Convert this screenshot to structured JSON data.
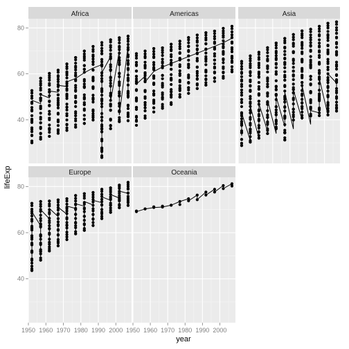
{
  "chart_data": {
    "type": "line",
    "subtype": "faceted line + scatter (ggplot2 facet_wrap)",
    "title": "",
    "xlabel": "year",
    "ylabel": "lifeExp",
    "xlim": [
      1950,
      2009
    ],
    "ylim": [
      21,
      84
    ],
    "x_ticks": [
      1950,
      1960,
      1970,
      1980,
      1990,
      2000
    ],
    "x_tick_labels": [
      "1950",
      "1960",
      "1970",
      "1980",
      "1990",
      "2000"
    ],
    "y_ticks": [
      40,
      60,
      80
    ],
    "y_tick_labels": [
      "40",
      "60",
      "80"
    ],
    "years": [
      1952,
      1957,
      1962,
      1967,
      1972,
      1977,
      1982,
      1987,
      1992,
      1997,
      2002,
      2007
    ],
    "grid": true,
    "colors": {
      "panel_background": "#ebebeb",
      "strip_background": "#d9d9d9",
      "grid_major": "#ffffff",
      "grid_minor": "#f5f5f5",
      "points": "#000000",
      "lines": "#000000"
    },
    "facets": [
      {
        "name": "Africa",
        "points_min": [
          30.0,
          31.6,
          32.8,
          34.1,
          35.4,
          36.8,
          38.4,
          39.9,
          23.6,
          36.1,
          39.2,
          39.6
        ],
        "points_max": [
          52.7,
          58.1,
          60.2,
          61.6,
          64.3,
          67.1,
          69.9,
          71.9,
          73.6,
          74.8,
          75.7,
          76.4
        ],
        "line_path": [
          {
            "year": 1952,
            "lifeExp": 48.5
          },
          {
            "year": 1957,
            "lifeExp": 47.0
          },
          {
            "year": 1957,
            "lifeExp": 51.0
          },
          {
            "year": 1962,
            "lifeExp": 49.5
          },
          {
            "year": 1962,
            "lifeExp": 52.5
          },
          {
            "year": 1967,
            "lifeExp": 52.0
          },
          {
            "year": 1967,
            "lifeExp": 55.0
          },
          {
            "year": 1972,
            "lifeExp": 54.5
          },
          {
            "year": 1972,
            "lifeExp": 56.5
          },
          {
            "year": 1977,
            "lifeExp": 58.0
          },
          {
            "year": 1982,
            "lifeExp": 60.5
          },
          {
            "year": 1987,
            "lifeExp": 62.5
          },
          {
            "year": 1992,
            "lifeExp": 64.0
          },
          {
            "year": 1992,
            "lifeExp": 23.6
          },
          {
            "year": 1992,
            "lifeExp": 60.5
          },
          {
            "year": 1997,
            "lifeExp": 67.5
          },
          {
            "year": 1997,
            "lifeExp": 48.0
          },
          {
            "year": 2002,
            "lifeExp": 70.0
          },
          {
            "year": 2002,
            "lifeExp": 42.0
          },
          {
            "year": 2007,
            "lifeExp": 72.0
          },
          {
            "year": 2007,
            "lifeExp": 49.0
          },
          {
            "year": 2007,
            "lifeExp": 75.5
          }
        ]
      },
      {
        "name": "Americas",
        "points_min": [
          37.6,
          40.7,
          43.4,
          45.0,
          46.7,
          49.9,
          51.5,
          53.6,
          55.1,
          56.7,
          58.1,
          60.9
        ],
        "points_max": [
          68.8,
          69.9,
          71.0,
          71.3,
          72.9,
          74.2,
          75.8,
          76.9,
          77.9,
          78.6,
          79.8,
          80.7
        ],
        "line_path": [
          {
            "year": 1952,
            "lifeExp": 55.5
          },
          {
            "year": 1957,
            "lifeExp": 59.0
          },
          {
            "year": 1957,
            "lifeExp": 56.5
          },
          {
            "year": 1962,
            "lifeExp": 61.0
          },
          {
            "year": 1967,
            "lifeExp": 63.0
          },
          {
            "year": 1972,
            "lifeExp": 64.5
          },
          {
            "year": 1977,
            "lifeExp": 66.0
          },
          {
            "year": 1982,
            "lifeExp": 67.5
          },
          {
            "year": 1987,
            "lifeExp": 69.0
          },
          {
            "year": 1992,
            "lifeExp": 70.5
          },
          {
            "year": 1997,
            "lifeExp": 72.0
          },
          {
            "year": 2002,
            "lifeExp": 73.5
          },
          {
            "year": 2007,
            "lifeExp": 75.5
          }
        ]
      },
      {
        "name": "Asia",
        "points_min": [
          28.8,
          30.3,
          32.0,
          34.0,
          36.1,
          31.2,
          39.9,
          40.8,
          41.7,
          41.8,
          42.1,
          43.8
        ],
        "points_max": [
          65.4,
          67.8,
          69.4,
          71.4,
          73.4,
          75.4,
          77.1,
          78.7,
          79.4,
          80.7,
          82.0,
          82.6
        ],
        "line_path": [
          {
            "year": 1952,
            "lifeExp": 33.0
          },
          {
            "year": 1952,
            "lifeExp": 43.0
          },
          {
            "year": 1957,
            "lifeExp": 31.0
          },
          {
            "year": 1957,
            "lifeExp": 46.0
          },
          {
            "year": 1962,
            "lifeExp": 32.0
          },
          {
            "year": 1962,
            "lifeExp": 47.0
          },
          {
            "year": 1967,
            "lifeExp": 35.0
          },
          {
            "year": 1967,
            "lifeExp": 48.5
          },
          {
            "year": 1972,
            "lifeExp": 34.0
          },
          {
            "year": 1972,
            "lifeExp": 50.0
          },
          {
            "year": 1977,
            "lifeExp": 37.0
          },
          {
            "year": 1977,
            "lifeExp": 52.0
          },
          {
            "year": 1982,
            "lifeExp": 36.0
          },
          {
            "year": 1982,
            "lifeExp": 53.0
          },
          {
            "year": 1987,
            "lifeExp": 40.0
          },
          {
            "year": 1987,
            "lifeExp": 55.0
          },
          {
            "year": 1992,
            "lifeExp": 38.0
          },
          {
            "year": 1992,
            "lifeExp": 44.0
          },
          {
            "year": 1997,
            "lifeExp": 43.0
          },
          {
            "year": 1997,
            "lifeExp": 58.0
          },
          {
            "year": 2002,
            "lifeExp": 42.0
          },
          {
            "year": 2002,
            "lifeExp": 60.0
          },
          {
            "year": 2007,
            "lifeExp": 56.0
          },
          {
            "year": 2007,
            "lifeExp": 44.0
          }
        ]
      },
      {
        "name": "Europe",
        "points_min": [
          43.6,
          48.1,
          52.1,
          54.3,
          57.0,
          59.5,
          61.0,
          63.1,
          66.1,
          68.8,
          70.8,
          71.8
        ],
        "points_max": [
          72.7,
          73.5,
          73.7,
          74.2,
          74.7,
          76.1,
          76.9,
          77.4,
          78.8,
          79.4,
          80.6,
          81.8
        ],
        "line_path": [
          {
            "year": 1952,
            "lifeExp": 65.0
          },
          {
            "year": 1952,
            "lifeExp": 43.6
          },
          {
            "year": 1952,
            "lifeExp": 69.0
          },
          {
            "year": 1957,
            "lifeExp": 63.0
          },
          {
            "year": 1957,
            "lifeExp": 48.1
          },
          {
            "year": 1957,
            "lifeExp": 70.0
          },
          {
            "year": 1962,
            "lifeExp": 66.0
          },
          {
            "year": 1962,
            "lifeExp": 52.1
          },
          {
            "year": 1962,
            "lifeExp": 70.5
          },
          {
            "year": 1967,
            "lifeExp": 67.0
          },
          {
            "year": 1967,
            "lifeExp": 54.3
          },
          {
            "year": 1967,
            "lifeExp": 71.0
          },
          {
            "year": 1972,
            "lifeExp": 68.0
          },
          {
            "year": 1972,
            "lifeExp": 57.0
          },
          {
            "year": 1972,
            "lifeExp": 71.5
          },
          {
            "year": 1977,
            "lifeExp": 70.5
          },
          {
            "year": 1977,
            "lifeExp": 59.5
          },
          {
            "year": 1977,
            "lifeExp": 72.5
          },
          {
            "year": 1982,
            "lifeExp": 71.5
          },
          {
            "year": 1982,
            "lifeExp": 61.0
          },
          {
            "year": 1982,
            "lifeExp": 73.5
          },
          {
            "year": 1987,
            "lifeExp": 72.0
          },
          {
            "year": 1987,
            "lifeExp": 63.1
          },
          {
            "year": 1987,
            "lifeExp": 74.0
          },
          {
            "year": 1992,
            "lifeExp": 73.0
          },
          {
            "year": 1992,
            "lifeExp": 66.1
          },
          {
            "year": 1992,
            "lifeExp": 75.5
          },
          {
            "year": 1997,
            "lifeExp": 74.0
          },
          {
            "year": 1997,
            "lifeExp": 68.8
          },
          {
            "year": 1997,
            "lifeExp": 76.5
          },
          {
            "year": 2002,
            "lifeExp": 75.0
          },
          {
            "year": 2002,
            "lifeExp": 70.8
          },
          {
            "year": 2002,
            "lifeExp": 78.0
          },
          {
            "year": 2007,
            "lifeExp": 77.0
          },
          {
            "year": 2007,
            "lifeExp": 76.5
          }
        ]
      },
      {
        "name": "Oceania",
        "points": [
          {
            "year": 1952,
            "values": [
              69.1,
              69.4
            ]
          },
          {
            "year": 1957,
            "values": [
              70.3,
              70.3
            ]
          },
          {
            "year": 1962,
            "values": [
              70.9,
              71.2
            ]
          },
          {
            "year": 1967,
            "values": [
              71.1,
              71.5
            ]
          },
          {
            "year": 1972,
            "values": [
              71.9,
              71.9
            ]
          },
          {
            "year": 1977,
            "values": [
              72.2,
              73.5
            ]
          },
          {
            "year": 1982,
            "values": [
              73.8,
              74.7
            ]
          },
          {
            "year": 1987,
            "values": [
              74.3,
              76.3
            ]
          },
          {
            "year": 1992,
            "values": [
              76.3,
              77.6
            ]
          },
          {
            "year": 1997,
            "values": [
              77.6,
              78.8
            ]
          },
          {
            "year": 2002,
            "values": [
              79.1,
              80.4
            ]
          },
          {
            "year": 2007,
            "values": [
              80.2,
              81.2
            ]
          }
        ],
        "line_path": [
          {
            "year": 1952,
            "lifeExp": 69.1
          },
          {
            "year": 1957,
            "lifeExp": 70.3
          },
          {
            "year": 1962,
            "lifeExp": 70.9
          },
          {
            "year": 1967,
            "lifeExp": 71.1
          },
          {
            "year": 1972,
            "lifeExp": 71.9
          },
          {
            "year": 1977,
            "lifeExp": 73.5
          },
          {
            "year": 1982,
            "lifeExp": 74.7
          },
          {
            "year": 1982,
            "lifeExp": 73.8
          },
          {
            "year": 1987,
            "lifeExp": 76.3
          },
          {
            "year": 1987,
            "lifeExp": 74.3
          },
          {
            "year": 1992,
            "lifeExp": 77.6
          },
          {
            "year": 1992,
            "lifeExp": 76.3
          },
          {
            "year": 1997,
            "lifeExp": 78.8
          },
          {
            "year": 1997,
            "lifeExp": 77.6
          },
          {
            "year": 2002,
            "lifeExp": 80.4
          },
          {
            "year": 2002,
            "lifeExp": 79.1
          },
          {
            "year": 2007,
            "lifeExp": 81.2
          },
          {
            "year": 2007,
            "lifeExp": 80.2
          }
        ]
      }
    ]
  }
}
